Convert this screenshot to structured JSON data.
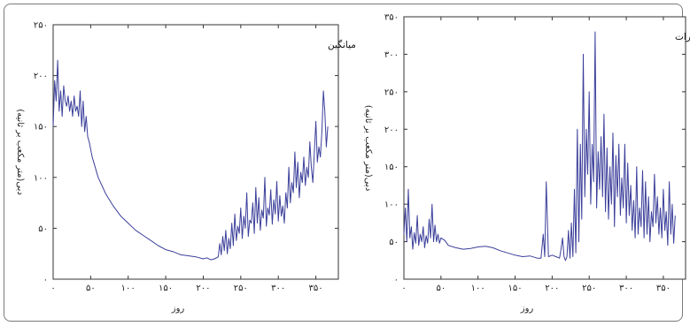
{
  "chart_data": [
    {
      "type": "line",
      "annotation": "میانگین",
      "xlabel": "روز",
      "ylabel": "دبی(متر مکعب بر ثانیه)",
      "xlim": [
        0,
        380
      ],
      "ylim": [
        0,
        250
      ],
      "xticks": [
        0,
        50,
        100,
        150,
        200,
        250,
        300,
        350
      ],
      "xtick_labels": [
        "۰",
        "۵۰",
        "۱۰۰",
        "۱۵۰",
        "۲۰۰",
        "۲۵۰",
        "۳۰۰",
        "۳۵۰"
      ],
      "yticks": [
        0,
        50,
        100,
        150,
        200,
        250
      ],
      "ytick_labels": [
        "۰",
        "۵۰",
        "۱۰۰",
        "۱۵۰",
        "۲۰۰",
        "۲۵۰"
      ],
      "line_color": "#3b3f9a",
      "series": [
        {
          "x": [
            0,
            2,
            4,
            6,
            8,
            10,
            12,
            14,
            16,
            18,
            20,
            22,
            24,
            26,
            28,
            30,
            32,
            34,
            36,
            38,
            40,
            42,
            44,
            46,
            48,
            52,
            56,
            60,
            65,
            70,
            80,
            90,
            100,
            110,
            120,
            130,
            140,
            150,
            160,
            170,
            180,
            190,
            200,
            205,
            210,
            215,
            220,
            222,
            224,
            226,
            228,
            230,
            232,
            234,
            236,
            238,
            240,
            242,
            244,
            246,
            248,
            250,
            252,
            254,
            256,
            258,
            260,
            262,
            264,
            266,
            268,
            270,
            272,
            274,
            276,
            278,
            280,
            282,
            284,
            286,
            288,
            290,
            292,
            294,
            296,
            298,
            300,
            302,
            304,
            306,
            308,
            310,
            312,
            314,
            316,
            318,
            320,
            322,
            324,
            326,
            328,
            330,
            332,
            334,
            336,
            338,
            340,
            342,
            344,
            346,
            348,
            350,
            352,
            354,
            356,
            358,
            360,
            362,
            364,
            366
          ],
          "y": [
            150,
            195,
            175,
            215,
            165,
            185,
            160,
            190,
            175,
            170,
            180,
            165,
            175,
            160,
            180,
            165,
            170,
            160,
            185,
            150,
            175,
            145,
            160,
            140,
            135,
            120,
            110,
            100,
            92,
            84,
            72,
            62,
            55,
            48,
            43,
            38,
            33,
            29,
            27,
            24,
            23,
            22,
            20,
            21,
            19,
            20,
            22,
            35,
            24,
            42,
            28,
            48,
            25,
            40,
            30,
            55,
            33,
            64,
            38,
            52,
            45,
            70,
            40,
            62,
            50,
            85,
            42,
            58,
            55,
            75,
            45,
            90,
            55,
            80,
            48,
            68,
            60,
            100,
            52,
            70,
            63,
            88,
            54,
            78,
            64,
            96,
            57,
            82,
            62,
            72,
            55,
            85,
            70,
            110,
            75,
            95,
            85,
            125,
            90,
            115,
            80,
            105,
            95,
            120,
            92,
            110,
            100,
            135,
            110,
            95,
            125,
            155,
            115,
            130,
            120,
            145,
            185,
            165,
            130,
            150
          ]
        }
      ]
    },
    {
      "type": "line",
      "annotation": "ضریب تغییرات",
      "xlabel": "روز",
      "ylabel": "دبی(متر مکعب بر ثانیه)",
      "xlim": [
        0,
        380
      ],
      "ylim": [
        0,
        350
      ],
      "xticks": [
        0,
        50,
        100,
        150,
        200,
        250,
        300,
        350
      ],
      "xtick_labels": [
        "۰",
        "۵۰",
        "۱۰۰",
        "۱۵۰",
        "۲۰۰",
        "۲۵۰",
        "۳۰۰",
        "۳۵۰"
      ],
      "yticks": [
        0,
        50,
        100,
        150,
        200,
        250,
        300,
        350
      ],
      "ytick_labels": [
        "۰",
        "۵۰",
        "۱۰۰",
        "۱۵۰",
        "۲۰۰",
        "۲۵۰",
        "۳۰۰",
        "۳۵۰"
      ],
      "line_color": "#3b3f9a",
      "series": [
        {
          "x": [
            0,
            2,
            4,
            6,
            8,
            10,
            12,
            14,
            16,
            18,
            20,
            22,
            24,
            26,
            28,
            30,
            32,
            34,
            36,
            38,
            40,
            42,
            44,
            46,
            48,
            50,
            55,
            60,
            70,
            80,
            90,
            100,
            110,
            120,
            130,
            140,
            150,
            160,
            170,
            180,
            185,
            188,
            190,
            192,
            195,
            200,
            205,
            210,
            212,
            214,
            216,
            218,
            220,
            222,
            224,
            226,
            228,
            230,
            232,
            234,
            236,
            238,
            240,
            242,
            244,
            246,
            248,
            250,
            252,
            254,
            256,
            258,
            260,
            262,
            264,
            266,
            268,
            270,
            272,
            274,
            276,
            278,
            280,
            282,
            284,
            286,
            288,
            290,
            292,
            294,
            296,
            298,
            300,
            302,
            304,
            306,
            308,
            310,
            312,
            314,
            316,
            318,
            320,
            322,
            324,
            326,
            328,
            330,
            332,
            334,
            336,
            338,
            340,
            342,
            344,
            346,
            348,
            350,
            352,
            354,
            356,
            358,
            360,
            362,
            364,
            366
          ],
          "y": [
            60,
            95,
            50,
            120,
            55,
            70,
            40,
            62,
            48,
            85,
            45,
            60,
            50,
            70,
            42,
            58,
            48,
            80,
            55,
            100,
            50,
            72,
            50,
            60,
            48,
            55,
            52,
            45,
            42,
            40,
            41,
            43,
            44,
            42,
            38,
            35,
            32,
            30,
            31,
            28,
            28,
            60,
            30,
            130,
            30,
            32,
            30,
            28,
            40,
            55,
            30,
            25,
            30,
            65,
            28,
            75,
            30,
            120,
            35,
            200,
            50,
            180,
            80,
            300,
            110,
            200,
            140,
            250,
            100,
            180,
            130,
            330,
            95,
            170,
            120,
            190,
            110,
            220,
            90,
            175,
            80,
            150,
            100,
            195,
            70,
            165,
            110,
            180,
            85,
            135,
            95,
            180,
            75,
            155,
            85,
            125,
            65,
            105,
            55,
            150,
            60,
            95,
            70,
            145,
            55,
            130,
            60,
            110,
            50,
            90,
            70,
            140,
            75,
            110,
            60,
            95,
            55,
            120,
            65,
            90,
            45,
            130,
            60,
            100,
            48,
            85
          ]
        }
      ]
    }
  ]
}
